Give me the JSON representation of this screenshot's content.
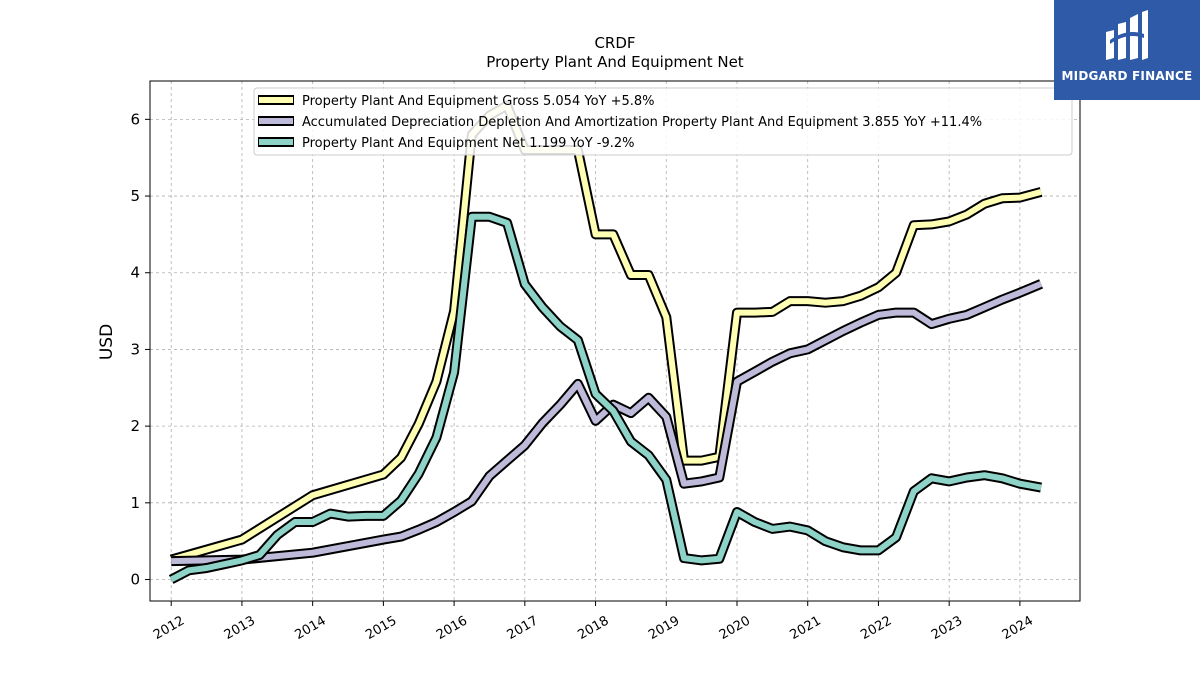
{
  "brand": {
    "name": "MIDGARD FINANCE",
    "logo_icon": "midgard-logo-icon",
    "color": "#2f5aa8"
  },
  "chart_data": {
    "type": "line",
    "title": "CRDF",
    "subtitle": "Property Plant And Equipment Net",
    "xlabel": "",
    "ylabel": "USD",
    "xlim": [
      2011.7,
      2024.85
    ],
    "ylim": [
      -0.28,
      6.5
    ],
    "x_ticks": [
      "2012",
      "2013",
      "2014",
      "2015",
      "2016",
      "2017",
      "2018",
      "2019",
      "2020",
      "2021",
      "2022",
      "2023",
      "2024"
    ],
    "y_ticks": [
      "0",
      "1",
      "2",
      "3",
      "4",
      "5",
      "6"
    ],
    "grid": true,
    "legend_position": "top",
    "series": [
      {
        "name": "Property Plant And Equipment Gross  5.054 YoY +5.8%",
        "color": "#ffffb3",
        "points": [
          [
            2012.0,
            0.26
          ],
          [
            2013.0,
            0.52
          ],
          [
            2014.0,
            1.1
          ],
          [
            2015.0,
            1.37
          ],
          [
            2015.25,
            1.59
          ],
          [
            2015.5,
            2.03
          ],
          [
            2015.75,
            2.58
          ],
          [
            2016.0,
            3.5
          ],
          [
            2016.25,
            5.8
          ],
          [
            2016.5,
            6.05
          ],
          [
            2016.75,
            6.18
          ],
          [
            2017.0,
            5.6
          ],
          [
            2017.25,
            5.6
          ],
          [
            2017.5,
            5.6
          ],
          [
            2017.75,
            5.6
          ],
          [
            2018.0,
            4.5
          ],
          [
            2018.25,
            4.5
          ],
          [
            2018.5,
            3.97
          ],
          [
            2018.75,
            3.97
          ],
          [
            2019.0,
            3.42
          ],
          [
            2019.25,
            1.55
          ],
          [
            2019.5,
            1.55
          ],
          [
            2019.75,
            1.6
          ],
          [
            2020.0,
            3.48
          ],
          [
            2020.25,
            3.48
          ],
          [
            2020.5,
            3.49
          ],
          [
            2020.75,
            3.63
          ],
          [
            2021.0,
            3.63
          ],
          [
            2021.25,
            3.61
          ],
          [
            2021.5,
            3.63
          ],
          [
            2021.75,
            3.7
          ],
          [
            2022.0,
            3.81
          ],
          [
            2022.25,
            4.0
          ],
          [
            2022.5,
            4.62
          ],
          [
            2022.75,
            4.63
          ],
          [
            2023.0,
            4.67
          ],
          [
            2023.25,
            4.76
          ],
          [
            2023.5,
            4.9
          ],
          [
            2023.75,
            4.97
          ],
          [
            2024.0,
            4.98
          ],
          [
            2024.3,
            5.054
          ]
        ]
      },
      {
        "name": "Accumulated Depreciation Depletion And Amortization Property Plant And Equipment  3.855 YoY +11.4%",
        "color": "#bebada",
        "points": [
          [
            2012.0,
            0.24
          ],
          [
            2013.0,
            0.26
          ],
          [
            2014.0,
            0.35
          ],
          [
            2015.0,
            0.52
          ],
          [
            2015.25,
            0.56
          ],
          [
            2015.5,
            0.65
          ],
          [
            2015.75,
            0.75
          ],
          [
            2016.0,
            0.88
          ],
          [
            2016.25,
            1.02
          ],
          [
            2016.5,
            1.35
          ],
          [
            2016.75,
            1.55
          ],
          [
            2017.0,
            1.75
          ],
          [
            2017.25,
            2.04
          ],
          [
            2017.5,
            2.28
          ],
          [
            2017.75,
            2.55
          ],
          [
            2018.0,
            2.07
          ],
          [
            2018.25,
            2.28
          ],
          [
            2018.5,
            2.17
          ],
          [
            2018.75,
            2.37
          ],
          [
            2019.0,
            2.12
          ],
          [
            2019.25,
            1.25
          ],
          [
            2019.5,
            1.28
          ],
          [
            2019.75,
            1.33
          ],
          [
            2020.0,
            2.58
          ],
          [
            2020.25,
            2.71
          ],
          [
            2020.5,
            2.84
          ],
          [
            2020.75,
            2.95
          ],
          [
            2021.0,
            3.0
          ],
          [
            2021.25,
            3.12
          ],
          [
            2021.5,
            3.24
          ],
          [
            2021.75,
            3.35
          ],
          [
            2022.0,
            3.45
          ],
          [
            2022.25,
            3.48
          ],
          [
            2022.5,
            3.48
          ],
          [
            2022.75,
            3.33
          ],
          [
            2023.0,
            3.4
          ],
          [
            2023.25,
            3.45
          ],
          [
            2023.5,
            3.55
          ],
          [
            2023.75,
            3.65
          ],
          [
            2024.0,
            3.74
          ],
          [
            2024.3,
            3.855
          ]
        ]
      },
      {
        "name": "Property Plant And Equipment Net  1.199 YoY -9.2%",
        "color": "#8dd3c7",
        "points": [
          [
            2012.0,
            0.0
          ],
          [
            2012.25,
            0.12
          ],
          [
            2012.5,
            0.15
          ],
          [
            2012.75,
            0.2
          ],
          [
            2013.0,
            0.25
          ],
          [
            2013.25,
            0.32
          ],
          [
            2013.5,
            0.58
          ],
          [
            2013.75,
            0.75
          ],
          [
            2014.0,
            0.75
          ],
          [
            2014.25,
            0.86
          ],
          [
            2014.5,
            0.82
          ],
          [
            2014.75,
            0.83
          ],
          [
            2015.0,
            0.83
          ],
          [
            2015.25,
            1.03
          ],
          [
            2015.5,
            1.38
          ],
          [
            2015.75,
            1.85
          ],
          [
            2016.0,
            2.7
          ],
          [
            2016.25,
            4.73
          ],
          [
            2016.5,
            4.73
          ],
          [
            2016.75,
            4.65
          ],
          [
            2017.0,
            3.85
          ],
          [
            2017.25,
            3.55
          ],
          [
            2017.5,
            3.3
          ],
          [
            2017.75,
            3.12
          ],
          [
            2018.0,
            2.42
          ],
          [
            2018.25,
            2.2
          ],
          [
            2018.5,
            1.8
          ],
          [
            2018.75,
            1.62
          ],
          [
            2019.0,
            1.3
          ],
          [
            2019.25,
            0.28
          ],
          [
            2019.5,
            0.25
          ],
          [
            2019.75,
            0.27
          ],
          [
            2020.0,
            0.88
          ],
          [
            2020.25,
            0.75
          ],
          [
            2020.5,
            0.66
          ],
          [
            2020.75,
            0.69
          ],
          [
            2021.0,
            0.64
          ],
          [
            2021.25,
            0.5
          ],
          [
            2021.5,
            0.42
          ],
          [
            2021.75,
            0.38
          ],
          [
            2022.0,
            0.38
          ],
          [
            2022.25,
            0.55
          ],
          [
            2022.5,
            1.15
          ],
          [
            2022.75,
            1.32
          ],
          [
            2023.0,
            1.28
          ],
          [
            2023.25,
            1.33
          ],
          [
            2023.5,
            1.36
          ],
          [
            2023.75,
            1.32
          ],
          [
            2024.0,
            1.25
          ],
          [
            2024.3,
            1.199
          ]
        ]
      }
    ]
  }
}
